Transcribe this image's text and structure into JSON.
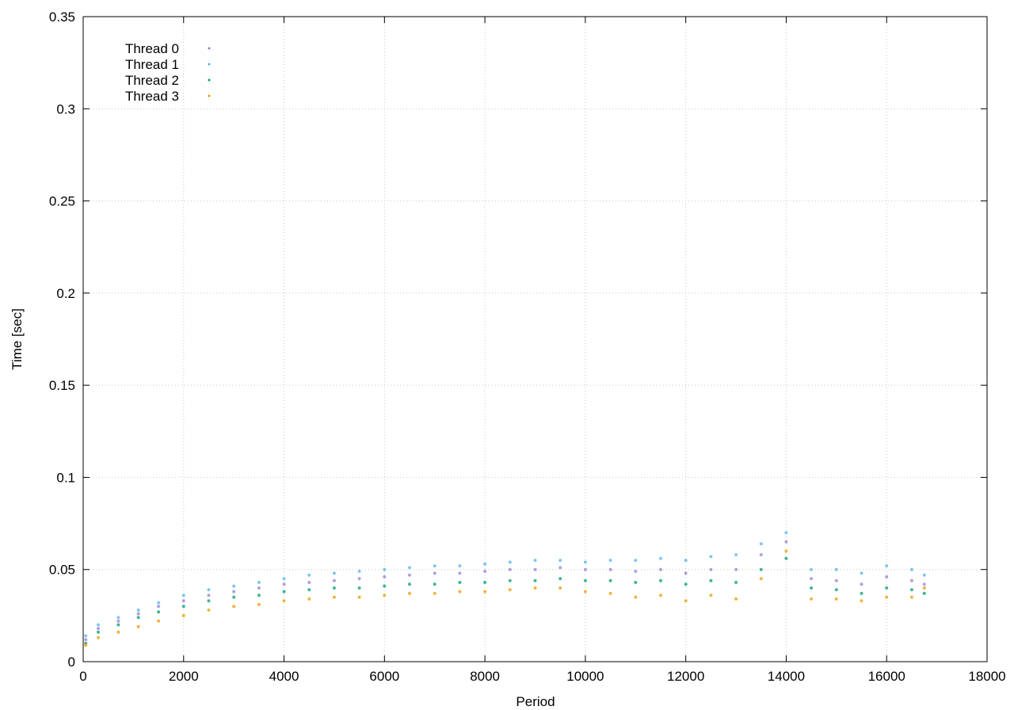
{
  "chart_data": {
    "type": "scatter",
    "title": "",
    "xlabel": "Period",
    "ylabel": "Time [sec]",
    "xlim": [
      0,
      18000
    ],
    "ylim": [
      0,
      0.35
    ],
    "xticks": [
      "0",
      "2000",
      "4000",
      "6000",
      "8000",
      "10000",
      "12000",
      "14000",
      "16000",
      "18000"
    ],
    "yticks": [
      "0",
      "0.05",
      "0.1",
      "0.15",
      "0.2",
      "0.25",
      "0.3",
      "0.35"
    ],
    "grid": true,
    "legend_position": "top-left",
    "series": [
      {
        "name": "Thread 0",
        "color": "#9a7fd1",
        "x": [
          50,
          300,
          700,
          1100,
          1500,
          2000,
          2500,
          3000,
          3500,
          4000,
          4500,
          5000,
          5500,
          6000,
          6500,
          7000,
          7500,
          8000,
          8500,
          9000,
          9500,
          10000,
          10500,
          11000,
          11500,
          12000,
          12500,
          13000,
          13500,
          14000,
          14500,
          15000,
          15500,
          16000,
          16500,
          16750
        ],
        "y": [
          0.012,
          0.018,
          0.022,
          0.026,
          0.03,
          0.033,
          0.036,
          0.038,
          0.04,
          0.042,
          0.043,
          0.044,
          0.045,
          0.046,
          0.047,
          0.048,
          0.048,
          0.049,
          0.05,
          0.05,
          0.051,
          0.05,
          0.05,
          0.049,
          0.05,
          0.048,
          0.05,
          0.05,
          0.058,
          0.065,
          0.045,
          0.044,
          0.042,
          0.046,
          0.044,
          0.042
        ]
      },
      {
        "name": "Thread 1",
        "color": "#56b4e9",
        "x": [
          50,
          300,
          700,
          1100,
          1500,
          2000,
          2500,
          3000,
          3500,
          4000,
          4500,
          5000,
          5500,
          6000,
          6500,
          7000,
          7500,
          8000,
          8500,
          9000,
          9500,
          10000,
          10500,
          11000,
          11500,
          12000,
          12500,
          13000,
          13500,
          14000,
          14500,
          15000,
          15500,
          16000,
          16500,
          16750
        ],
        "y": [
          0.014,
          0.02,
          0.024,
          0.028,
          0.032,
          0.036,
          0.039,
          0.041,
          0.043,
          0.045,
          0.047,
          0.048,
          0.049,
          0.05,
          0.051,
          0.052,
          0.052,
          0.053,
          0.054,
          0.055,
          0.055,
          0.054,
          0.055,
          0.055,
          0.056,
          0.055,
          0.057,
          0.058,
          0.064,
          0.07,
          0.05,
          0.05,
          0.048,
          0.052,
          0.05,
          0.047
        ]
      },
      {
        "name": "Thread 2",
        "color": "#009e73",
        "x": [
          50,
          300,
          700,
          1100,
          1500,
          2000,
          2500,
          3000,
          3500,
          4000,
          4500,
          5000,
          5500,
          6000,
          6500,
          7000,
          7500,
          8000,
          8500,
          9000,
          9500,
          10000,
          10500,
          11000,
          11500,
          12000,
          12500,
          13000,
          13500,
          14000,
          14500,
          15000,
          15500,
          16000,
          16500,
          16750
        ],
        "y": [
          0.01,
          0.016,
          0.02,
          0.024,
          0.027,
          0.03,
          0.033,
          0.035,
          0.036,
          0.038,
          0.039,
          0.04,
          0.04,
          0.041,
          0.042,
          0.042,
          0.043,
          0.043,
          0.044,
          0.044,
          0.045,
          0.044,
          0.044,
          0.043,
          0.044,
          0.042,
          0.044,
          0.043,
          0.05,
          0.056,
          0.04,
          0.039,
          0.037,
          0.04,
          0.039,
          0.037
        ]
      },
      {
        "name": "Thread 3",
        "color": "#e69f00",
        "x": [
          50,
          300,
          700,
          1100,
          1500,
          2000,
          2500,
          3000,
          3500,
          4000,
          4500,
          5000,
          5500,
          6000,
          6500,
          7000,
          7500,
          8000,
          8500,
          9000,
          9500,
          10000,
          10500,
          11000,
          11500,
          12000,
          12500,
          13000,
          13500,
          14000,
          14500,
          15000,
          15500,
          16000,
          16500,
          16750
        ],
        "y": [
          0.009,
          0.013,
          0.016,
          0.019,
          0.022,
          0.025,
          0.028,
          0.03,
          0.031,
          0.033,
          0.034,
          0.035,
          0.035,
          0.036,
          0.037,
          0.037,
          0.038,
          0.038,
          0.039,
          0.04,
          0.04,
          0.038,
          0.037,
          0.035,
          0.036,
          0.033,
          0.036,
          0.034,
          0.045,
          0.06,
          0.034,
          0.034,
          0.033,
          0.035,
          0.035,
          0.04
        ]
      }
    ]
  }
}
